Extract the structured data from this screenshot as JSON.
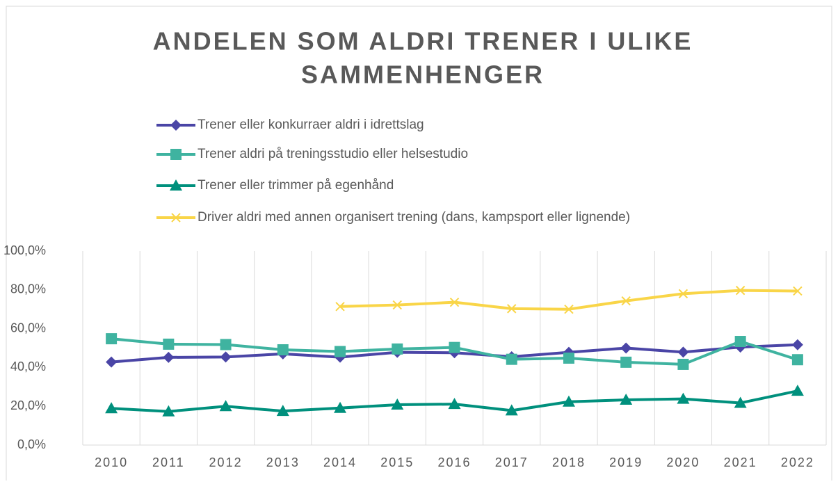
{
  "chart_data": {
    "type": "line",
    "title": [
      "ANDELEN SOM ALDRI TRENER I ULIKE",
      "SAMMENHENGER"
    ],
    "categories": [
      "2010",
      "2011",
      "2012",
      "2013",
      "2014",
      "2015",
      "2016",
      "2017",
      "2018",
      "2019",
      "2020",
      "2021",
      "2022"
    ],
    "series": [
      {
        "name": "Trener eller konkurraer aldri i idrettslag",
        "color": "#4a45a6",
        "marker": "diamond",
        "values": [
          42.8,
          45.2,
          45.4,
          47.0,
          45.3,
          47.8,
          47.6,
          45.5,
          47.8,
          50.0,
          47.9,
          50.5,
          51.7
        ]
      },
      {
        "name": "Trener aldri på treningsstudio eller helsestudio",
        "color": "#3fb3a0",
        "marker": "square",
        "values": [
          54.8,
          52.0,
          51.8,
          49.1,
          48.2,
          49.5,
          50.3,
          44.2,
          44.8,
          42.7,
          41.6,
          53.4,
          44.0
        ]
      },
      {
        "name": "Trener eller trimmer på egenhånd",
        "color": "#00907d",
        "marker": "triangle",
        "values": [
          18.9,
          17.3,
          20.0,
          17.5,
          19.1,
          20.8,
          21.1,
          17.8,
          22.3,
          23.3,
          23.8,
          21.7,
          27.9
        ]
      },
      {
        "name": "Driver aldri med annen organisert trening (dans, kampsport eller lignende)",
        "color": "#f9d548",
        "marker": "x",
        "values": [
          null,
          null,
          null,
          null,
          71.4,
          72.2,
          73.6,
          70.3,
          70.0,
          74.3,
          78.0,
          79.7,
          79.4
        ]
      }
    ],
    "ylim": [
      0,
      100
    ],
    "yticks": [
      {
        "value": 0,
        "label": "0,0%"
      },
      {
        "value": 20,
        "label": "20,0%"
      },
      {
        "value": 40,
        "label": "40,0%"
      },
      {
        "value": 60,
        "label": "60,0%"
      },
      {
        "value": 80,
        "label": "80,0%"
      },
      {
        "value": 100,
        "label": "100,0%"
      }
    ],
    "grid": "vertical"
  }
}
